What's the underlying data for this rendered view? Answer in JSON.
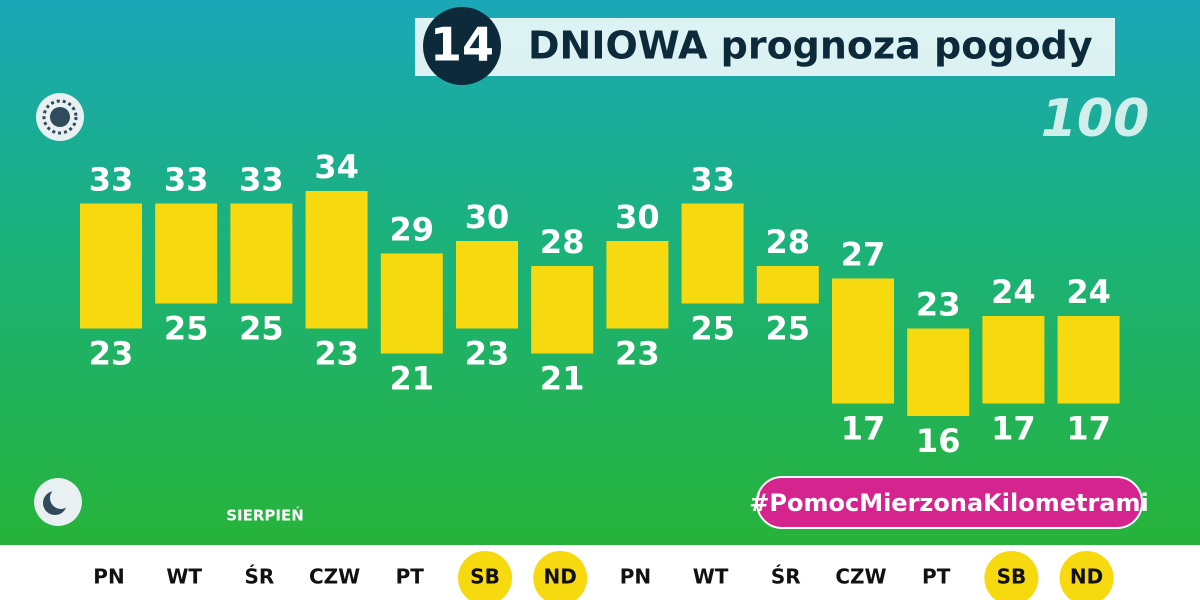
{
  "chart_data": {
    "type": "range-bar",
    "badge": "14",
    "title": "DNIOWA prognoza pogody",
    "month": "SIERPIEŃ",
    "hashtag": "#PomocMierzonaKilometrami",
    "categories": [
      "PN",
      "WT",
      "ŚR",
      "CZW",
      "PT",
      "SB",
      "ND",
      "PN",
      "WT",
      "ŚR",
      "CZW",
      "PT",
      "SB",
      "ND"
    ],
    "highlighted": [
      false,
      false,
      false,
      false,
      false,
      true,
      true,
      false,
      false,
      false,
      false,
      false,
      true,
      true
    ],
    "high": [
      33,
      33,
      33,
      34,
      29,
      30,
      28,
      30,
      33,
      28,
      27,
      23,
      24,
      24
    ],
    "low": [
      23,
      25,
      25,
      23,
      21,
      23,
      21,
      23,
      25,
      25,
      17,
      16,
      17,
      17
    ],
    "color": "#f7d90f"
  }
}
